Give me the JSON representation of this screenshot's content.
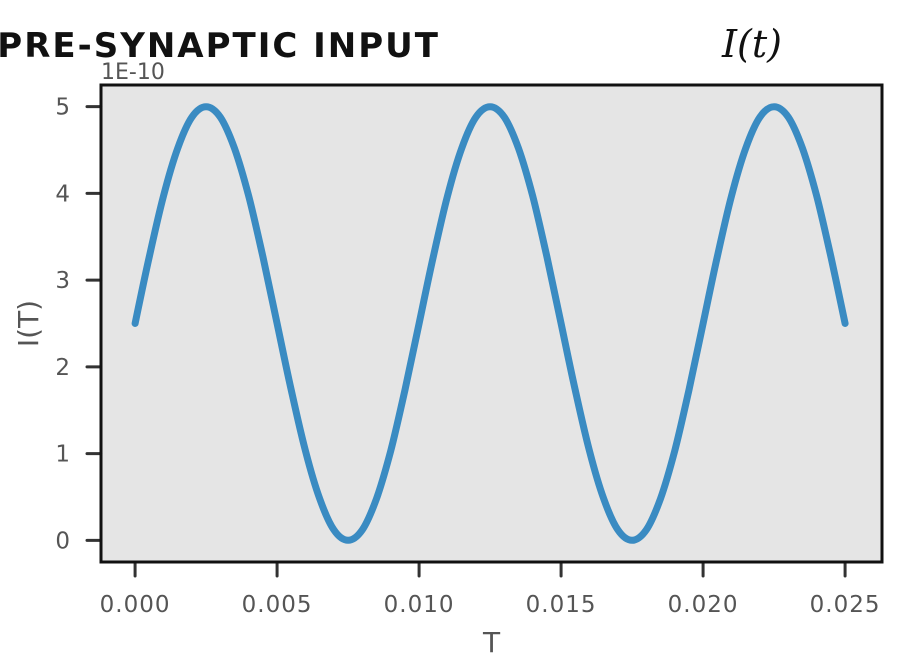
{
  "chart_data": {
    "type": "line",
    "title": "PRE-SYNAPTIC INPUT",
    "title_math": "I(t)",
    "xlabel": "T",
    "ylabel": "I(T)",
    "y_offset_label": "1E-10",
    "xlim": [
      -0.0012,
      0.0263
    ],
    "ylim": [
      -0.25,
      5.25
    ],
    "x_ticks": [
      0.0,
      0.005,
      0.01,
      0.015,
      0.02,
      0.025
    ],
    "x_tick_labels": [
      "0.000",
      "0.005",
      "0.010",
      "0.015",
      "0.020",
      "0.025"
    ],
    "y_ticks": [
      0,
      1,
      2,
      3,
      4,
      5
    ],
    "y_tick_labels": [
      "0",
      "1",
      "2",
      "3",
      "4",
      "5"
    ],
    "background": "#e5e5e5",
    "series": [
      {
        "name": "I(t)",
        "color": "#3a8bc2",
        "x": [
          0.0,
          0.0005,
          0.001,
          0.0015,
          0.002,
          0.0025,
          0.003,
          0.0035,
          0.004,
          0.0045,
          0.005,
          0.0055,
          0.006,
          0.0065,
          0.007,
          0.0075,
          0.008,
          0.0085,
          0.009,
          0.0095,
          0.01,
          0.0105,
          0.011,
          0.0115,
          0.012,
          0.0125,
          0.013,
          0.0135,
          0.014,
          0.0145,
          0.015,
          0.0155,
          0.016,
          0.0165,
          0.017,
          0.0175,
          0.018,
          0.0185,
          0.019,
          0.0195,
          0.02,
          0.0205,
          0.021,
          0.0215,
          0.022,
          0.0225,
          0.023,
          0.0235,
          0.024,
          0.0245,
          0.025
        ],
        "values": [
          2.5,
          3.27,
          3.97,
          4.52,
          4.88,
          5.0,
          4.88,
          4.52,
          3.97,
          3.27,
          2.5,
          1.73,
          1.03,
          0.48,
          0.12,
          0.0,
          0.12,
          0.48,
          1.03,
          1.73,
          2.5,
          3.27,
          3.97,
          4.52,
          4.88,
          5.0,
          4.88,
          4.52,
          3.97,
          3.27,
          2.5,
          1.73,
          1.03,
          0.48,
          0.12,
          0.0,
          0.12,
          0.48,
          1.03,
          1.73,
          2.5,
          3.27,
          3.97,
          4.52,
          4.88,
          5.0,
          4.88,
          4.52,
          3.97,
          3.27,
          2.5
        ]
      }
    ]
  }
}
